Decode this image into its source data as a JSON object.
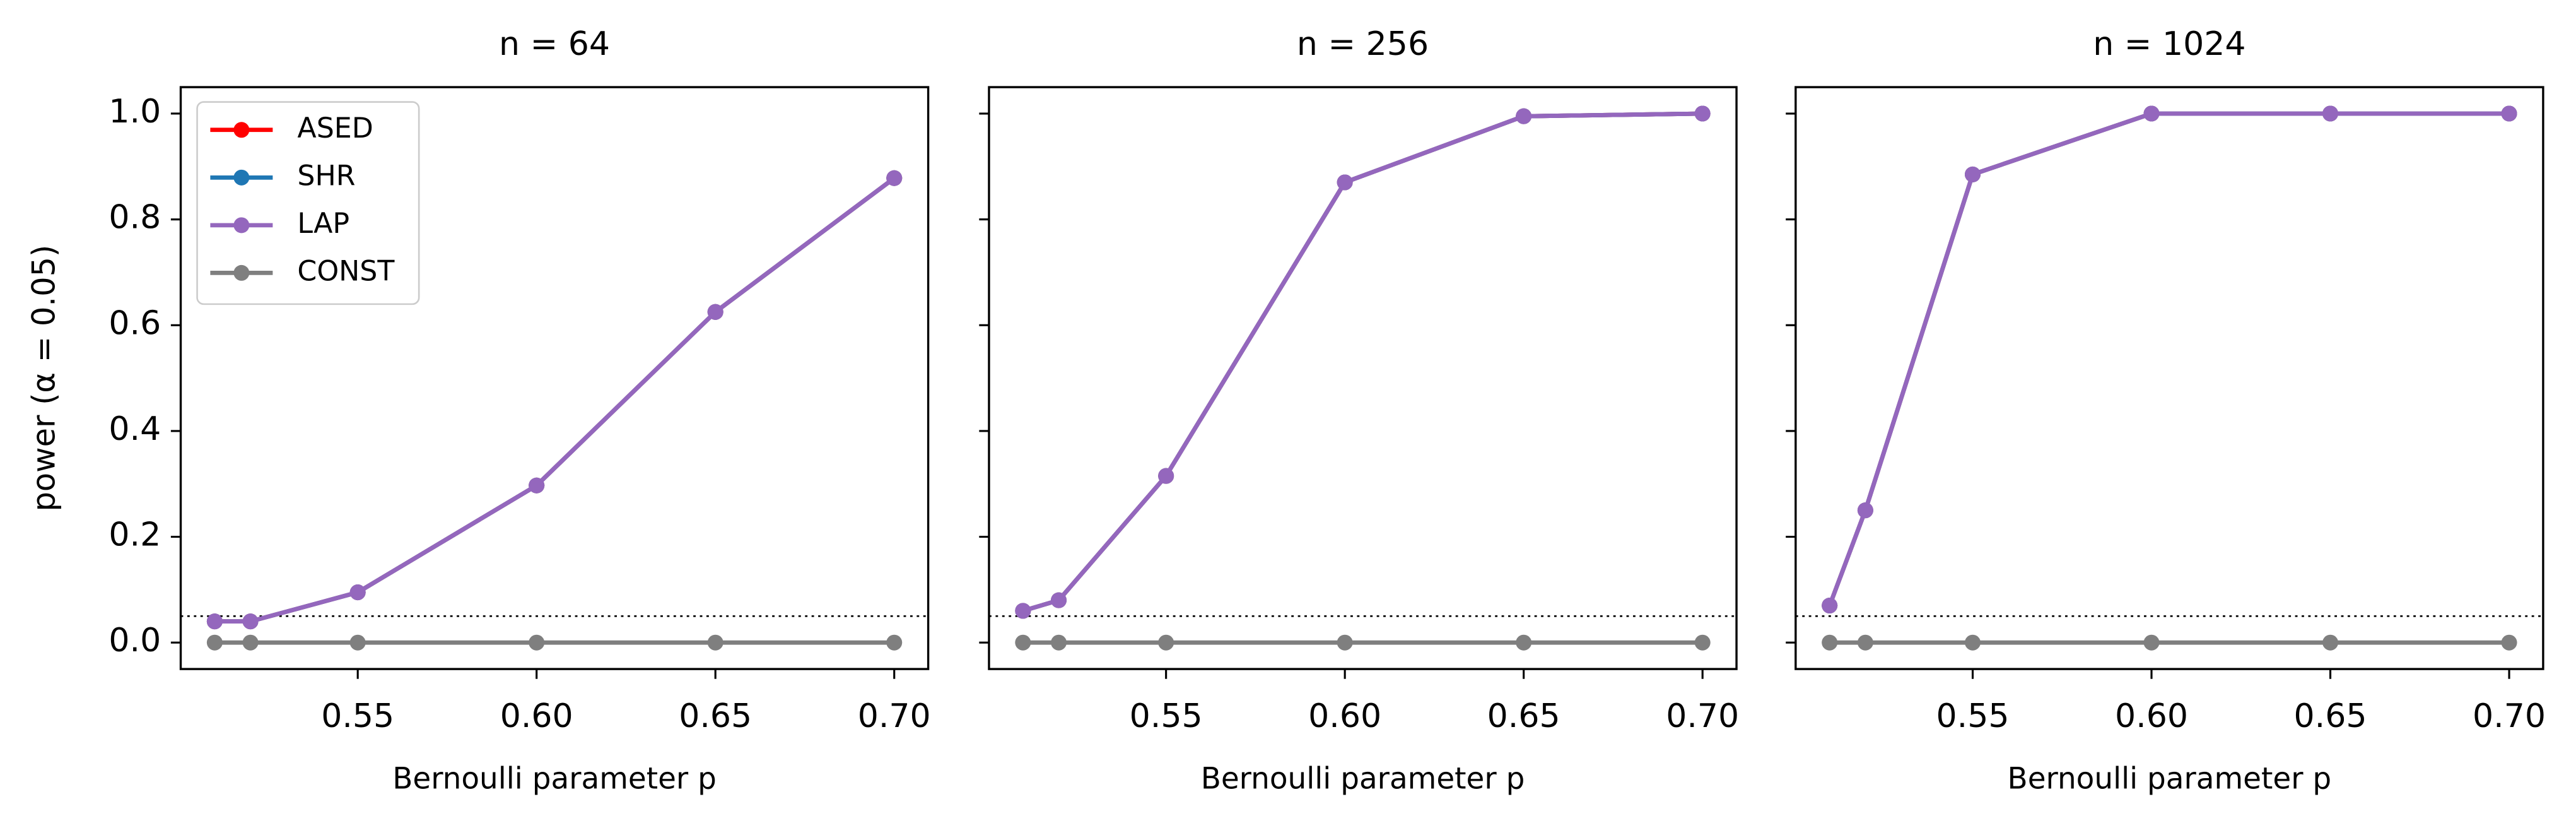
{
  "chart_data": [
    {
      "type": "line",
      "title": "n = 64",
      "xlabel": "Bernoulli parameter p",
      "ylabel": "power (α = 0.05)",
      "x": [
        0.51,
        0.52,
        0.55,
        0.6,
        0.65,
        0.7
      ],
      "series": [
        {
          "name": "ASED",
          "color": "#ff0000",
          "values": [
            0.04,
            0.04,
            0.095,
            0.297,
            0.625,
            0.878
          ]
        },
        {
          "name": "SHR",
          "color": "#1f77b4",
          "values": [
            0.04,
            0.04,
            0.095,
            0.297,
            0.625,
            0.878
          ]
        },
        {
          "name": "LAP",
          "color": "#9467bd",
          "values": [
            0.04,
            0.04,
            0.095,
            0.297,
            0.625,
            0.878
          ]
        },
        {
          "name": "CONST",
          "color": "#7f7f7f",
          "values": [
            0,
            0,
            0,
            0,
            0,
            0
          ]
        }
      ],
      "xlim": [
        0.5005,
        0.7095
      ],
      "ylim": [
        -0.05,
        1.05
      ],
      "xticks": [
        {
          "value": 0.55,
          "label": "0.55"
        },
        {
          "value": 0.6,
          "label": "0.60"
        },
        {
          "value": 0.65,
          "label": "0.65"
        },
        {
          "value": 0.7,
          "label": "0.70"
        }
      ],
      "yticks": [
        {
          "value": 0,
          "label": "0.0"
        },
        {
          "value": 0.2,
          "label": "0.2"
        },
        {
          "value": 0.4,
          "label": "0.4"
        },
        {
          "value": 0.6,
          "label": "0.6"
        },
        {
          "value": 0.8,
          "label": "0.8"
        },
        {
          "value": 1,
          "label": "1.0"
        }
      ],
      "show_ytick_labels": true,
      "hline": 0.05,
      "legend": "upper left"
    },
    {
      "type": "line",
      "title": "n = 256",
      "xlabel": "Bernoulli parameter p",
      "x": [
        0.51,
        0.52,
        0.55,
        0.6,
        0.65,
        0.7
      ],
      "series": [
        {
          "name": "ASED",
          "color": "#ff0000",
          "values": [
            0.06,
            0.08,
            0.315,
            0.87,
            0.995,
            1.0
          ]
        },
        {
          "name": "SHR",
          "color": "#1f77b4",
          "values": [
            0.06,
            0.08,
            0.315,
            0.87,
            0.995,
            1.0
          ]
        },
        {
          "name": "LAP",
          "color": "#9467bd",
          "values": [
            0.06,
            0.08,
            0.315,
            0.87,
            0.995,
            1.0
          ]
        },
        {
          "name": "CONST",
          "color": "#7f7f7f",
          "values": [
            0,
            0,
            0,
            0,
            0,
            0
          ]
        }
      ],
      "xlim": [
        0.5005,
        0.7095
      ],
      "ylim": [
        -0.05,
        1.05
      ],
      "xticks": [
        {
          "value": 0.55,
          "label": "0.55"
        },
        {
          "value": 0.6,
          "label": "0.60"
        },
        {
          "value": 0.65,
          "label": "0.65"
        },
        {
          "value": 0.7,
          "label": "0.70"
        }
      ],
      "yticks": [
        0,
        0.2,
        0.4,
        0.6,
        0.8,
        1
      ],
      "show_ytick_labels": false,
      "hline": 0.05
    },
    {
      "type": "line",
      "title": "n = 1024",
      "xlabel": "Bernoulli parameter p",
      "x": [
        0.51,
        0.52,
        0.55,
        0.6,
        0.65,
        0.7
      ],
      "series": [
        {
          "name": "ASED",
          "color": "#ff0000",
          "values": [
            0.07,
            0.25,
            0.885,
            1.0,
            1.0,
            1.0
          ]
        },
        {
          "name": "SHR",
          "color": "#1f77b4",
          "values": [
            0.07,
            0.25,
            0.885,
            1.0,
            1.0,
            1.0
          ]
        },
        {
          "name": "LAP",
          "color": "#9467bd",
          "values": [
            0.07,
            0.25,
            0.885,
            1.0,
            1.0,
            1.0
          ]
        },
        {
          "name": "CONST",
          "color": "#7f7f7f",
          "values": [
            0,
            0,
            0,
            0,
            0,
            0
          ]
        }
      ],
      "xlim": [
        0.5005,
        0.7095
      ],
      "ylim": [
        -0.05,
        1.05
      ],
      "xticks": [
        {
          "value": 0.55,
          "label": "0.55"
        },
        {
          "value": 0.6,
          "label": "0.60"
        },
        {
          "value": 0.65,
          "label": "0.65"
        },
        {
          "value": 0.7,
          "label": "0.70"
        }
      ],
      "yticks": [
        0,
        0.2,
        0.4,
        0.6,
        0.8,
        1
      ],
      "show_ytick_labels": false,
      "hline": 0.05
    }
  ]
}
